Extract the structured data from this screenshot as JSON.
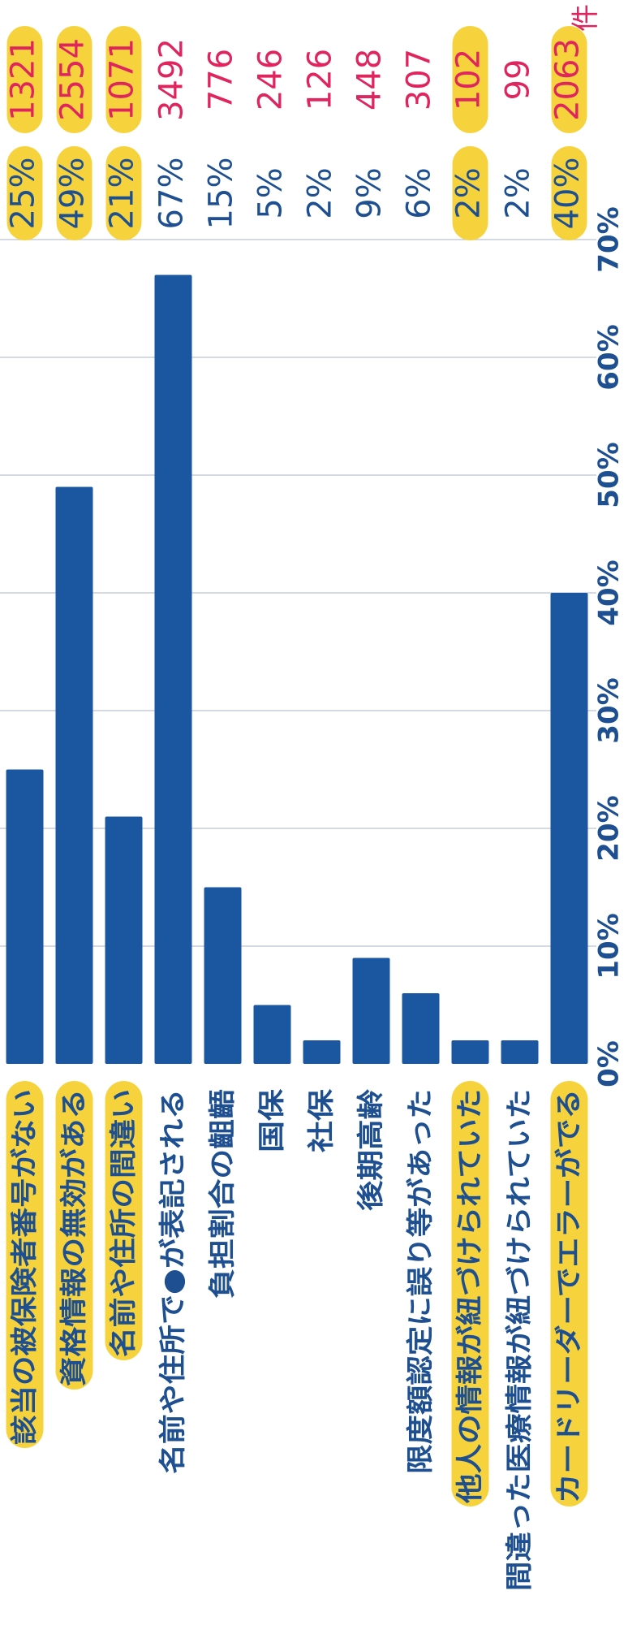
{
  "chart_data": {
    "type": "bar",
    "orientation": "vertical-text",
    "categories": [
      "該当の被保険者番号がない",
      "資格情報の無効がある",
      "名前や住所の間違い",
      "名前や住所で●が表記される",
      "負担割合の齟齬",
      "国保",
      "社保",
      "後期高齢",
      "限度額認定に誤り等があった",
      "他人の情報が紐づけられていた",
      "間違った医療情報が紐づけられていた",
      "カードリーダーでエラーがでる"
    ],
    "values": [
      25,
      49,
      21,
      67,
      15,
      5,
      2,
      9,
      6,
      2,
      2,
      40
    ],
    "percent_labels": [
      "25%",
      "49%",
      "21%",
      "67%",
      "15%",
      "5%",
      "2%",
      "9%",
      "6%",
      "2%",
      "2%",
      "40%"
    ],
    "counts": [
      "1321",
      "2554",
      "1071",
      "3492",
      "776",
      "246",
      "126",
      "448",
      "307",
      "102",
      "99",
      "2063"
    ],
    "count_unit": "件",
    "highlighted": [
      true,
      true,
      true,
      false,
      false,
      false,
      false,
      false,
      false,
      true,
      false,
      true
    ],
    "highlight_percent": [
      true,
      true,
      true,
      false,
      false,
      false,
      false,
      false,
      false,
      true,
      false,
      true
    ],
    "highlight_count": [
      true,
      true,
      true,
      false,
      false,
      false,
      false,
      false,
      false,
      true,
      false,
      true
    ],
    "axis_ticks": [
      "0%",
      "10%",
      "20%",
      "30%",
      "40%",
      "50%",
      "60%",
      "70%"
    ],
    "ylim": [
      0,
      70
    ],
    "grid": true,
    "colors": {
      "bar": "#1b56a0",
      "text": "#1d4f91",
      "count": "#e0245e",
      "highlight": "#f6d33c",
      "grid": "#c7ced8"
    }
  }
}
